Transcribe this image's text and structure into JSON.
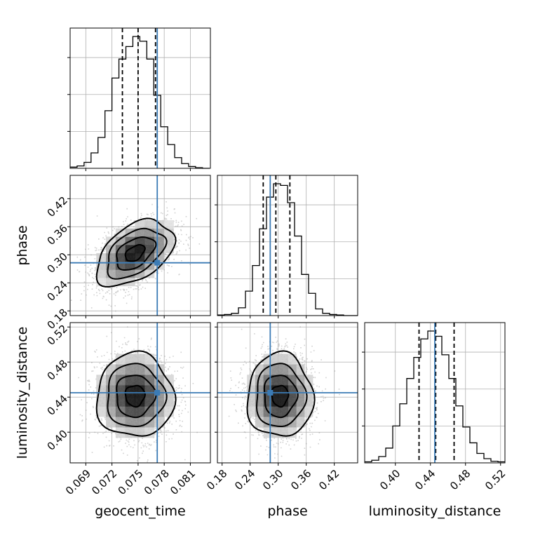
{
  "chart_data": {
    "type": "corner",
    "parameters": [
      "geocent_time",
      "phase",
      "luminosity_distance"
    ],
    "grid": true,
    "colors": {
      "truth": "#3b7bb5",
      "hist": "#000000",
      "scatter": "#9a9a9a",
      "grid": "#b0b0b0"
    },
    "truths": {
      "geocent_time": 0.0772,
      "phase": 0.283,
      "luminosity_distance": 0.445
    },
    "quantiles": {
      "geocent_time": [
        0.0732,
        0.075,
        0.077
      ],
      "phase": [
        0.268,
        0.295,
        0.325
      ],
      "luminosity_distance": [
        0.427,
        0.446,
        0.467
      ]
    },
    "axes": {
      "geocent_time": {
        "range": [
          0.0672,
          0.0833
        ],
        "ticks": [
          0.069,
          0.072,
          0.075,
          0.078,
          0.081
        ],
        "tick_labels": [
          "0.069",
          "0.072",
          "0.075",
          "0.078",
          "0.081"
        ]
      },
      "phase": {
        "range": [
          0.17,
          0.47
        ],
        "ticks": [
          0.18,
          0.24,
          0.3,
          0.36,
          0.42
        ],
        "tick_labels": [
          "0.18",
          "0.24",
          "0.30",
          "0.36",
          "0.42"
        ]
      },
      "luminosity_distance": {
        "range": [
          0.365,
          0.525
        ],
        "ticks": [
          0.4,
          0.44,
          0.48,
          0.52
        ],
        "tick_labels": [
          "0.40",
          "0.44",
          "0.48",
          "0.52"
        ]
      }
    },
    "histograms": {
      "geocent_time": {
        "bin_edges": [
          0.0672,
          0.068,
          0.0688,
          0.0696,
          0.0704,
          0.0712,
          0.072,
          0.0728,
          0.0736,
          0.0744,
          0.0752,
          0.076,
          0.0768,
          0.0776,
          0.0784,
          0.0792,
          0.08,
          0.0808,
          0.0816,
          0.0824,
          0.0832
        ],
        "counts": [
          2,
          4,
          10,
          26,
          52,
          97,
          152,
          184,
          205,
          222,
          214,
          184,
          123,
          70,
          40,
          18,
          8,
          3,
          1,
          0
        ]
      },
      "phase": {
        "bin_edges": [
          0.17,
          0.185,
          0.2,
          0.215,
          0.23,
          0.245,
          0.26,
          0.275,
          0.29,
          0.305,
          0.32,
          0.335,
          0.35,
          0.365,
          0.38,
          0.395,
          0.41,
          0.425,
          0.44,
          0.455,
          0.47
        ],
        "counts": [
          1,
          2,
          4,
          14,
          44,
          90,
          156,
          213,
          237,
          234,
          203,
          143,
          74,
          40,
          12,
          4,
          2,
          1,
          0,
          0
        ]
      },
      "luminosity_distance": {
        "bin_edges": [
          0.365,
          0.373,
          0.381,
          0.389,
          0.397,
          0.405,
          0.413,
          0.421,
          0.429,
          0.437,
          0.445,
          0.453,
          0.461,
          0.469,
          0.477,
          0.485,
          0.493,
          0.501,
          0.509,
          0.517,
          0.525
        ],
        "counts": [
          2,
          5,
          12,
          28,
          70,
          112,
          160,
          200,
          235,
          250,
          240,
          205,
          160,
          108,
          68,
          38,
          18,
          8,
          3,
          2
        ]
      }
    },
    "correlations": {
      "phase|geocent_time": 0.45,
      "luminosity_distance|geocent_time": 0.0,
      "luminosity_distance|phase": 0.0
    }
  }
}
